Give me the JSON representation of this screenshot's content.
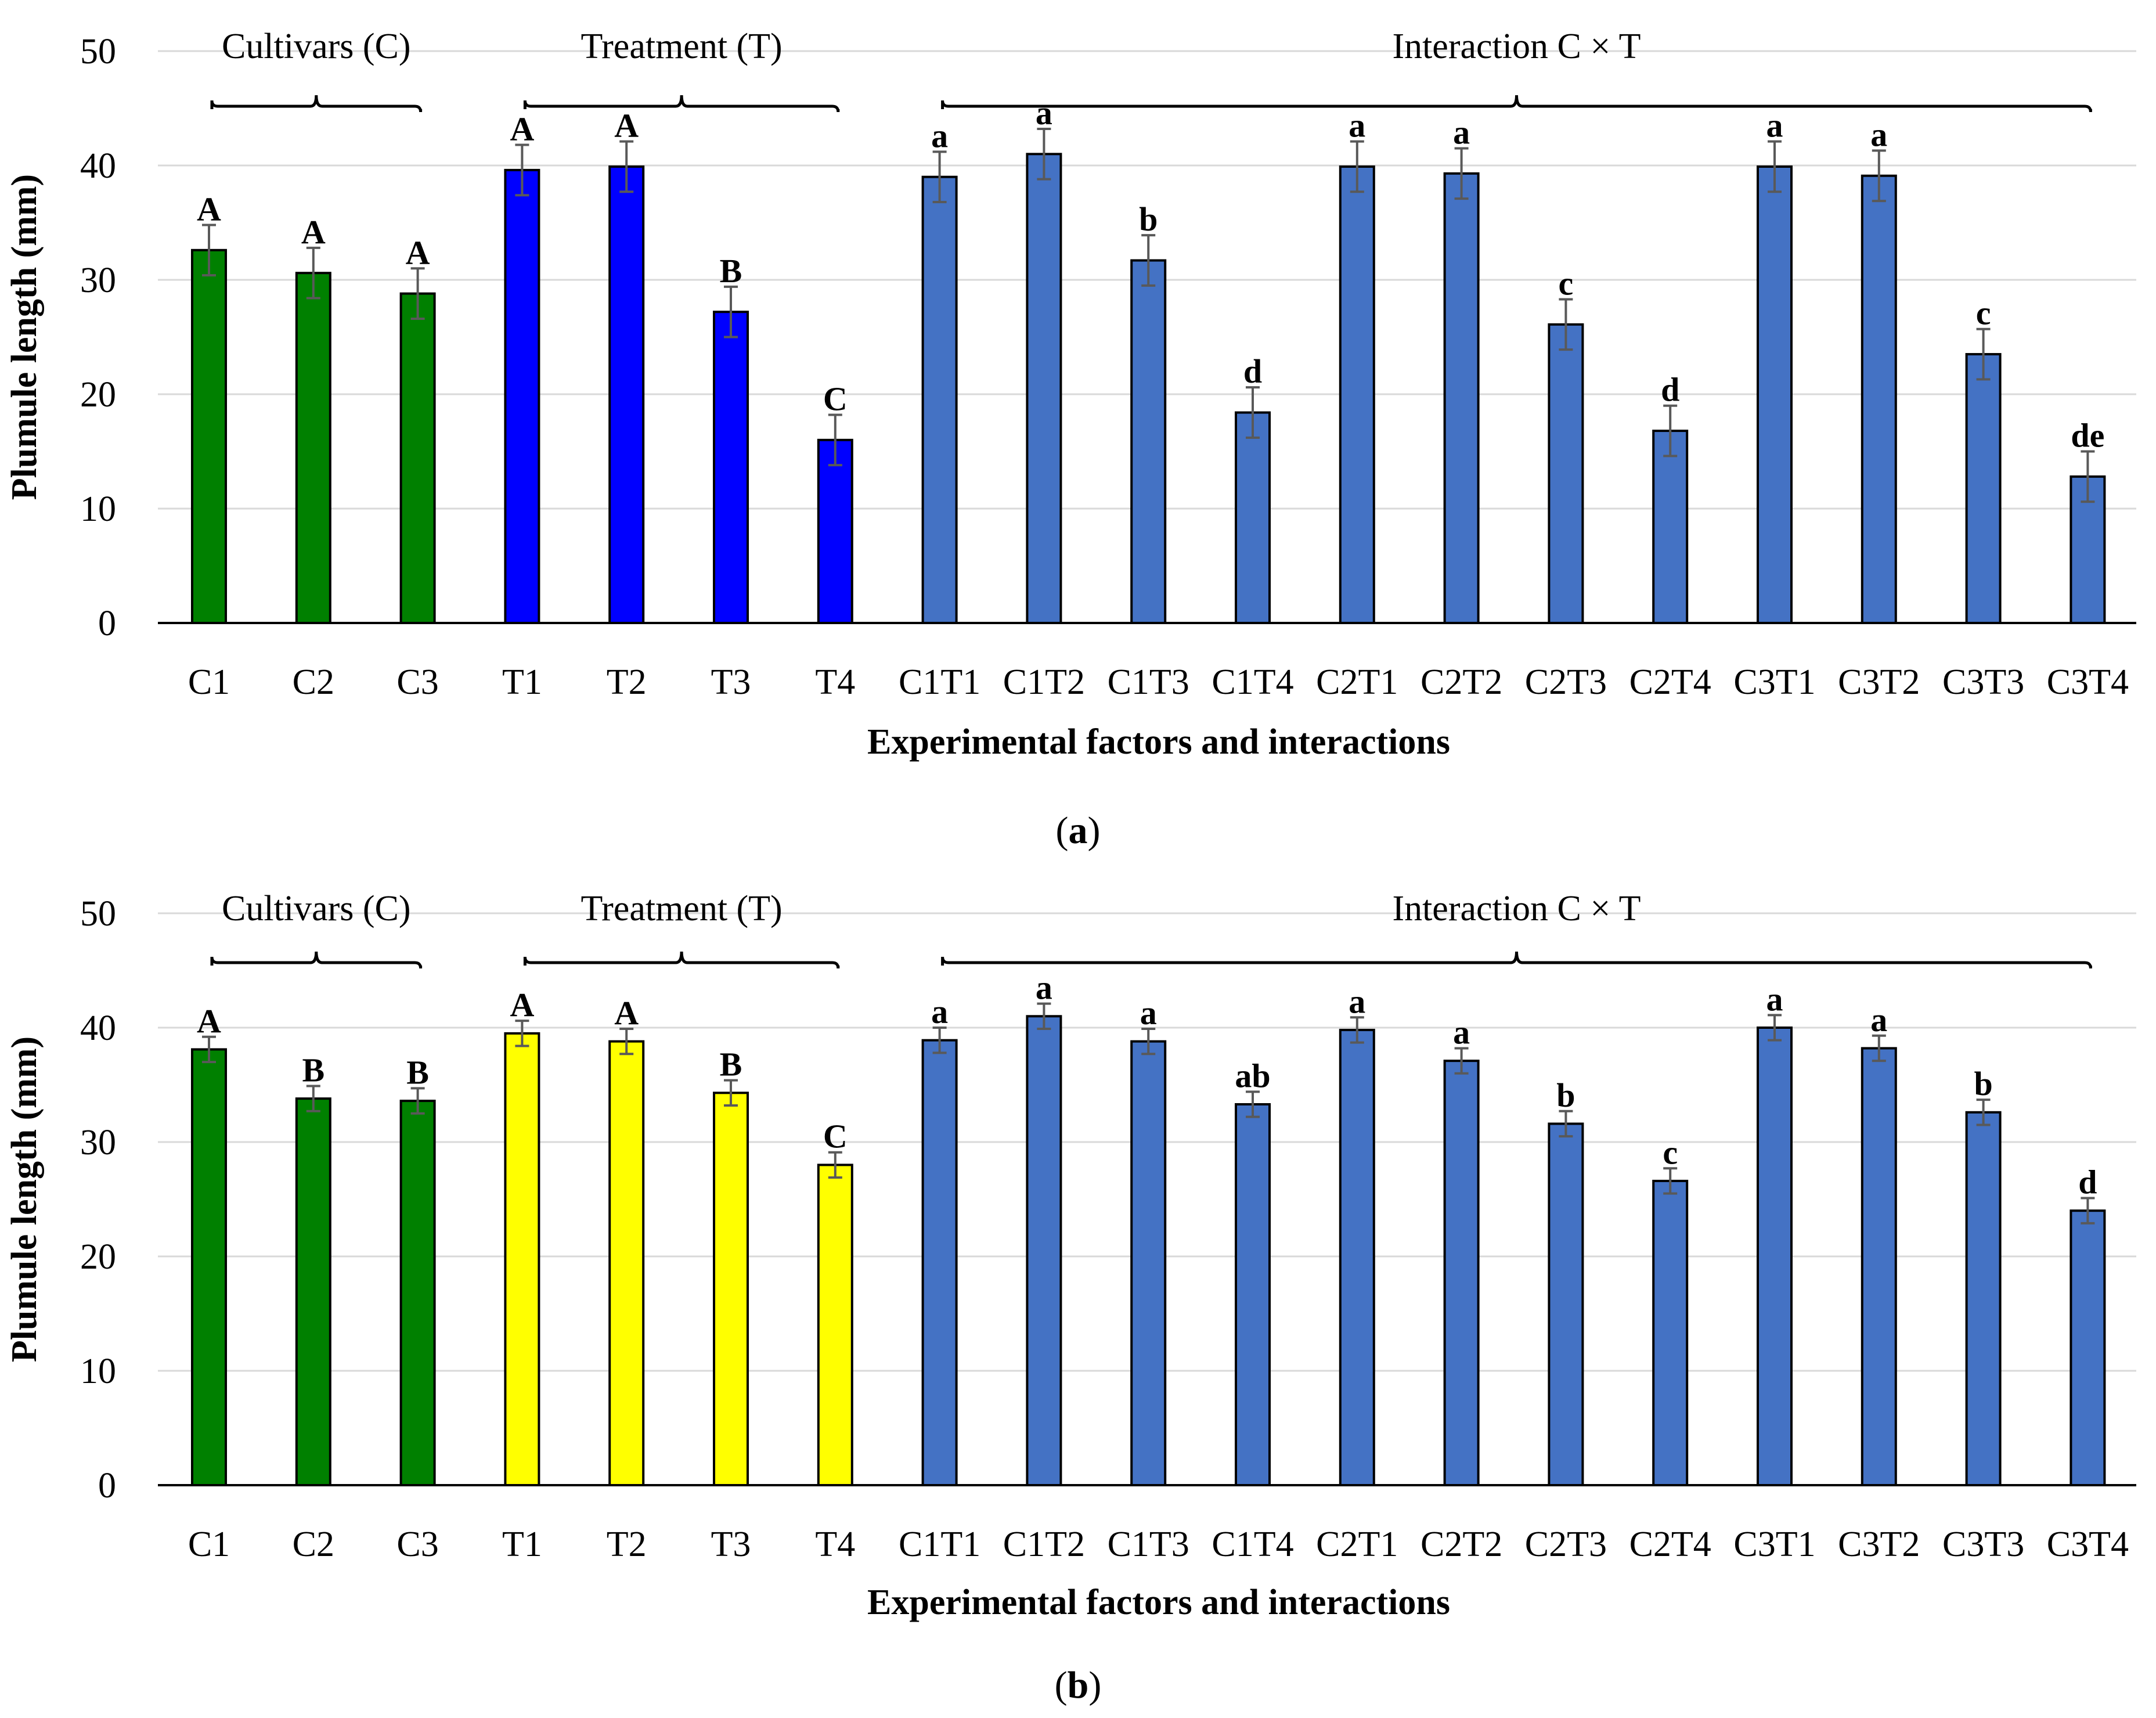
{
  "chart_data": [
    {
      "type": "bar",
      "panel_label": "a",
      "xlabel": "Experimental factors and interactions",
      "ylabel": "Plumule length (mm)",
      "ylim": [
        0,
        50
      ],
      "yticks": [
        0,
        10,
        20,
        30,
        40,
        50
      ],
      "grid": true,
      "categories": [
        "C1",
        "C2",
        "C3",
        "T1",
        "T2",
        "T3",
        "T4",
        "C1T1",
        "C1T2",
        "C1T3",
        "C1T4",
        "C2T1",
        "C2T2",
        "C2T3",
        "C2T4",
        "C3T1",
        "C3T2",
        "C3T3",
        "C3T4"
      ],
      "values": [
        32.6,
        30.6,
        28.8,
        39.6,
        39.9,
        27.2,
        16.0,
        39.0,
        41.0,
        31.7,
        18.4,
        39.9,
        39.3,
        26.1,
        16.8,
        39.9,
        39.1,
        23.5,
        12.8
      ],
      "errors": [
        2.2,
        2.2,
        2.2,
        2.2,
        2.2,
        2.2,
        2.2,
        2.2,
        2.2,
        2.2,
        2.2,
        2.2,
        2.2,
        2.2,
        2.2,
        2.2,
        2.2,
        2.2,
        2.2
      ],
      "letters": [
        "A",
        "A",
        "A",
        "A",
        "A",
        "B",
        "C",
        "a",
        "a",
        "b",
        "d",
        "a",
        "a",
        "c",
        "d",
        "a",
        "a",
        "c",
        "de"
      ],
      "colors": [
        "#008000",
        "#008000",
        "#008000",
        "#0000FF",
        "#0000FF",
        "#0000FF",
        "#0000FF",
        "#4472C4",
        "#4472C4",
        "#4472C4",
        "#4472C4",
        "#4472C4",
        "#4472C4",
        "#4472C4",
        "#4472C4",
        "#4472C4",
        "#4472C4",
        "#4472C4",
        "#4472C4"
      ],
      "groups": [
        {
          "label": "Cultivars (C)",
          "from": 0,
          "to": 2
        },
        {
          "label": "Treatment (T)",
          "from": 3,
          "to": 6
        },
        {
          "label": "Interaction C × T",
          "from": 7,
          "to": 18
        }
      ]
    },
    {
      "type": "bar",
      "panel_label": "b",
      "xlabel": "Experimental factors and interactions",
      "ylabel": "Plumule length (mm)",
      "ylim": [
        0,
        50
      ],
      "yticks": [
        0,
        10,
        20,
        30,
        40,
        50
      ],
      "grid": true,
      "categories": [
        "C1",
        "C2",
        "C3",
        "T1",
        "T2",
        "T3",
        "T4",
        "C1T1",
        "C1T2",
        "C1T3",
        "C1T4",
        "C2T1",
        "C2T2",
        "C2T3",
        "C2T4",
        "C3T1",
        "C3T2",
        "C3T3",
        "C3T4"
      ],
      "values": [
        38.1,
        33.8,
        33.6,
        39.5,
        38.8,
        34.3,
        28.0,
        38.9,
        41.0,
        38.8,
        33.3,
        39.8,
        37.1,
        31.6,
        26.6,
        40.0,
        38.2,
        32.6,
        24.0
      ],
      "errors": [
        1.1,
        1.1,
        1.1,
        1.1,
        1.1,
        1.1,
        1.1,
        1.1,
        1.1,
        1.1,
        1.1,
        1.1,
        1.1,
        1.1,
        1.1,
        1.1,
        1.1,
        1.1,
        1.1
      ],
      "letters": [
        "A",
        "B",
        "B",
        "A",
        "A",
        "B",
        "C",
        "a",
        "a",
        "a",
        "ab",
        "a",
        "a",
        "b",
        "c",
        "a",
        "a",
        "b",
        "d"
      ],
      "colors": [
        "#008000",
        "#008000",
        "#008000",
        "#FFFF00",
        "#FFFF00",
        "#FFFF00",
        "#FFFF00",
        "#4472C4",
        "#4472C4",
        "#4472C4",
        "#4472C4",
        "#4472C4",
        "#4472C4",
        "#4472C4",
        "#4472C4",
        "#4472C4",
        "#4472C4",
        "#4472C4",
        "#4472C4"
      ],
      "groups": [
        {
          "label": "Cultivars (C)",
          "from": 0,
          "to": 2
        },
        {
          "label": "Treatment (T)",
          "from": 3,
          "to": 6
        },
        {
          "label": "Interaction C × T",
          "from": 7,
          "to": 18
        }
      ]
    }
  ]
}
